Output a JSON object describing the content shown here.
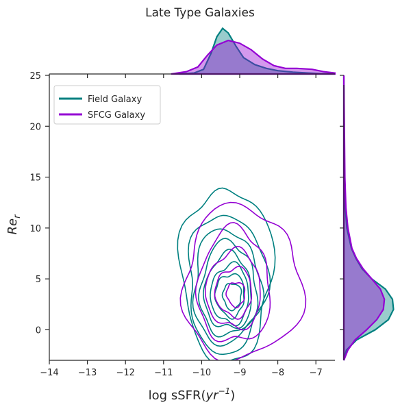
{
  "chart_data": {
    "type": "kde-joint",
    "title": "Late Type Galaxies",
    "xlabel": "log sSFR(yr⁻¹)",
    "xlabel_main": "log sSFR(",
    "xlabel_var": "yr",
    "xlabel_sup": "−1",
    "xlabel_close": ")",
    "ylabel": "Re_r",
    "ylabel_main": "Re",
    "ylabel_sub": "r",
    "xlim": [
      -14,
      -6.5
    ],
    "ylim": [
      -3,
      25
    ],
    "xticks": [
      -14,
      -13,
      -12,
      -11,
      -10,
      -9,
      -8,
      -7
    ],
    "xtick_labels": [
      "−14",
      "−13",
      "−12",
      "−11",
      "−10",
      "−9",
      "−8",
      "−7"
    ],
    "yticks": [
      0,
      5,
      10,
      15,
      20,
      25
    ],
    "ytick_labels": [
      "0",
      "5",
      "10",
      "15",
      "20",
      "25"
    ],
    "legend_position": "top-left",
    "series": [
      {
        "name": "Field Galaxy",
        "color": "#008080",
        "contours": [
          {
            "cx": -9.35,
            "cy": 5.5,
            "rx": 1.2,
            "ry": 8.5
          },
          {
            "cx": -9.35,
            "cy": 4.6,
            "rx": 1.02,
            "ry": 6.8
          },
          {
            "cx": -9.35,
            "cy": 4.2,
            "rx": 0.88,
            "ry": 5.6
          },
          {
            "cx": -9.3,
            "cy": 3.9,
            "rx": 0.74,
            "ry": 4.6
          },
          {
            "cx": -9.3,
            "cy": 3.7,
            "rx": 0.62,
            "ry": 3.7
          },
          {
            "cx": -9.25,
            "cy": 3.5,
            "rx": 0.5,
            "ry": 2.9
          },
          {
            "cx": -9.25,
            "cy": 3.4,
            "rx": 0.38,
            "ry": 2.1
          },
          {
            "cx": -9.2,
            "cy": 3.3,
            "rx": 0.24,
            "ry": 1.3
          }
        ],
        "marginal_x": [
          [
            -10.6,
            0
          ],
          [
            -10.2,
            0.02
          ],
          [
            -9.95,
            0.1
          ],
          [
            -9.75,
            0.45
          ],
          [
            -9.6,
            0.8
          ],
          [
            -9.45,
            0.98
          ],
          [
            -9.3,
            0.88
          ],
          [
            -9.1,
            0.6
          ],
          [
            -8.9,
            0.35
          ],
          [
            -8.6,
            0.2
          ],
          [
            -8.3,
            0.12
          ],
          [
            -8.0,
            0.07
          ],
          [
            -7.6,
            0.04
          ],
          [
            -7.2,
            0.02
          ],
          [
            -6.9,
            0.01
          ],
          [
            -6.5,
            0
          ]
        ],
        "marginal_y": [
          [
            -3,
            0
          ],
          [
            -2,
            0.05
          ],
          [
            -1,
            0.25
          ],
          [
            0,
            0.62
          ],
          [
            1,
            0.88
          ],
          [
            2,
            0.98
          ],
          [
            3,
            0.96
          ],
          [
            4,
            0.82
          ],
          [
            5,
            0.55
          ],
          [
            6,
            0.36
          ],
          [
            7,
            0.24
          ],
          [
            8,
            0.15
          ],
          [
            10,
            0.06
          ],
          [
            12,
            0.03
          ],
          [
            15,
            0.01
          ],
          [
            25,
            0
          ]
        ]
      },
      {
        "name": "SFCG Galaxy",
        "color": "#9400d3",
        "contours": [
          {
            "cx": -8.95,
            "cy": 4.5,
            "rx": 1.55,
            "ry": 7.5
          },
          {
            "cx": -9.15,
            "cy": 4.2,
            "rx": 0.95,
            "ry": 5.6
          },
          {
            "cx": -9.15,
            "cy": 3.9,
            "rx": 0.72,
            "ry": 3.8
          },
          {
            "cx": -9.15,
            "cy": 3.7,
            "rx": 0.48,
            "ry": 2.4
          },
          {
            "cx": -9.1,
            "cy": 3.5,
            "rx": 0.24,
            "ry": 1.2
          }
        ],
        "marginal_x": [
          [
            -10.8,
            0
          ],
          [
            -10.4,
            0.05
          ],
          [
            -10.1,
            0.15
          ],
          [
            -9.85,
            0.4
          ],
          [
            -9.6,
            0.62
          ],
          [
            -9.3,
            0.72
          ],
          [
            -9.0,
            0.66
          ],
          [
            -8.7,
            0.52
          ],
          [
            -8.4,
            0.32
          ],
          [
            -8.1,
            0.18
          ],
          [
            -7.8,
            0.12
          ],
          [
            -7.5,
            0.12
          ],
          [
            -7.1,
            0.1
          ],
          [
            -6.8,
            0.05
          ],
          [
            -6.5,
            0.02
          ]
        ],
        "marginal_y": [
          [
            -3,
            0
          ],
          [
            -2,
            0.08
          ],
          [
            -1,
            0.22
          ],
          [
            0,
            0.45
          ],
          [
            1,
            0.65
          ],
          [
            2,
            0.78
          ],
          [
            3,
            0.8
          ],
          [
            4,
            0.72
          ],
          [
            5,
            0.55
          ],
          [
            6,
            0.38
          ],
          [
            7,
            0.25
          ],
          [
            8,
            0.16
          ],
          [
            10,
            0.08
          ],
          [
            12,
            0.04
          ],
          [
            15,
            0.02
          ],
          [
            25,
            0
          ]
        ]
      }
    ]
  }
}
